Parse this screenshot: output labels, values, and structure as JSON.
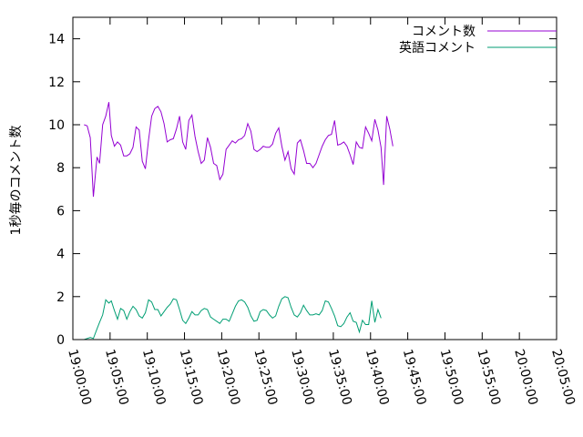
{
  "chart_data": {
    "type": "line",
    "title": "",
    "ylabel": "1秒毎のコメント数",
    "xlabel": "",
    "xlim": [
      "19:00:00",
      "20:05:00"
    ],
    "ylim": [
      0,
      15
    ],
    "xticks": [
      "19:00:00",
      "19:05:00",
      "19:10:00",
      "19:15:00",
      "19:20:00",
      "19:25:00",
      "19:30:00",
      "19:35:00",
      "19:40:00",
      "19:45:00",
      "19:50:00",
      "19:55:00",
      "20:00:00",
      "20:05:00"
    ],
    "yticks": [
      0,
      2,
      4,
      6,
      8,
      10,
      12,
      14
    ],
    "grid": false,
    "legend": "top-right",
    "series": [
      {
        "name": "コメント数",
        "color": "#9400d3",
        "points": [
          [
            "19:01:30",
            10.0
          ],
          [
            "19:01:55",
            9.95
          ],
          [
            "19:02:20",
            9.4
          ],
          [
            "19:02:45",
            6.65
          ],
          [
            "19:03:15",
            8.5
          ],
          [
            "19:03:35",
            8.2
          ],
          [
            "19:04:00",
            10.0
          ],
          [
            "19:04:25",
            10.4
          ],
          [
            "19:04:50",
            11.05
          ],
          [
            "19:05:10",
            9.5
          ],
          [
            "19:05:35",
            9.0
          ],
          [
            "19:06:00",
            9.2
          ],
          [
            "19:06:25",
            9.05
          ],
          [
            "19:06:50",
            8.55
          ],
          [
            "19:07:15",
            8.55
          ],
          [
            "19:07:40",
            8.65
          ],
          [
            "19:08:05",
            8.95
          ],
          [
            "19:08:30",
            9.9
          ],
          [
            "19:08:55",
            9.75
          ],
          [
            "19:09:20",
            8.3
          ],
          [
            "19:09:45",
            7.95
          ],
          [
            "19:10:10",
            9.3
          ],
          [
            "19:10:35",
            10.4
          ],
          [
            "19:11:00",
            10.75
          ],
          [
            "19:11:25",
            10.85
          ],
          [
            "19:11:50",
            10.6
          ],
          [
            "19:12:15",
            10.05
          ],
          [
            "19:12:40",
            9.2
          ],
          [
            "19:13:05",
            9.3
          ],
          [
            "19:13:30",
            9.35
          ],
          [
            "19:13:55",
            9.8
          ],
          [
            "19:14:20",
            10.4
          ],
          [
            "19:14:45",
            9.2
          ],
          [
            "19:15:10",
            8.85
          ],
          [
            "19:15:35",
            10.2
          ],
          [
            "19:16:00",
            10.45
          ],
          [
            "19:16:25",
            9.45
          ],
          [
            "19:16:50",
            8.75
          ],
          [
            "19:17:15",
            8.2
          ],
          [
            "19:17:40",
            8.35
          ],
          [
            "19:18:05",
            9.4
          ],
          [
            "19:18:30",
            8.95
          ],
          [
            "19:18:55",
            8.2
          ],
          [
            "19:19:20",
            8.1
          ],
          [
            "19:19:45",
            7.45
          ],
          [
            "19:20:10",
            7.7
          ],
          [
            "19:20:35",
            8.85
          ],
          [
            "19:21:00",
            9.05
          ],
          [
            "19:21:25",
            9.25
          ],
          [
            "19:21:50",
            9.15
          ],
          [
            "19:22:15",
            9.3
          ],
          [
            "19:22:40",
            9.35
          ],
          [
            "19:23:05",
            9.5
          ],
          [
            "19:23:30",
            10.05
          ],
          [
            "19:23:55",
            9.7
          ],
          [
            "19:24:20",
            8.85
          ],
          [
            "19:24:45",
            8.75
          ],
          [
            "19:25:10",
            8.85
          ],
          [
            "19:25:35",
            9.0
          ],
          [
            "19:26:00",
            8.95
          ],
          [
            "19:26:25",
            8.95
          ],
          [
            "19:26:50",
            9.1
          ],
          [
            "19:27:15",
            9.6
          ],
          [
            "19:27:40",
            9.85
          ],
          [
            "19:28:05",
            9.0
          ],
          [
            "19:28:30",
            8.35
          ],
          [
            "19:28:55",
            8.75
          ],
          [
            "19:29:20",
            7.95
          ],
          [
            "19:29:45",
            7.7
          ],
          [
            "19:30:10",
            9.15
          ],
          [
            "19:30:35",
            9.3
          ],
          [
            "19:31:00",
            8.8
          ],
          [
            "19:31:25",
            8.2
          ],
          [
            "19:31:50",
            8.2
          ],
          [
            "19:32:15",
            8.0
          ],
          [
            "19:32:40",
            8.2
          ],
          [
            "19:33:05",
            8.6
          ],
          [
            "19:33:30",
            9.0
          ],
          [
            "19:33:55",
            9.3
          ],
          [
            "19:34:20",
            9.5
          ],
          [
            "19:34:45",
            9.55
          ],
          [
            "19:35:10",
            10.2
          ],
          [
            "19:35:35",
            9.05
          ],
          [
            "19:36:00",
            9.1
          ],
          [
            "19:36:25",
            9.2
          ],
          [
            "19:36:50",
            9.0
          ],
          [
            "19:37:15",
            8.6
          ],
          [
            "19:37:40",
            8.15
          ],
          [
            "19:38:05",
            9.2
          ],
          [
            "19:38:30",
            8.95
          ],
          [
            "19:38:55",
            8.9
          ],
          [
            "19:39:20",
            9.9
          ],
          [
            "19:39:45",
            9.6
          ],
          [
            "19:40:10",
            9.25
          ],
          [
            "19:40:35",
            10.25
          ],
          [
            "19:41:00",
            9.75
          ],
          [
            "19:41:25",
            8.95
          ],
          [
            "19:41:45",
            7.2
          ],
          [
            "19:42:10",
            10.4
          ],
          [
            "19:42:35",
            9.8
          ],
          [
            "19:43:00",
            9.0
          ]
        ]
      },
      {
        "name": "英語コメント",
        "color": "#009e73",
        "points": [
          [
            "19:01:30",
            0.0
          ],
          [
            "19:01:55",
            0.05
          ],
          [
            "19:02:20",
            0.1
          ],
          [
            "19:02:45",
            0.05
          ],
          [
            "19:03:15",
            0.5
          ],
          [
            "19:03:35",
            0.8
          ],
          [
            "19:04:00",
            1.15
          ],
          [
            "19:04:25",
            1.85
          ],
          [
            "19:04:50",
            1.7
          ],
          [
            "19:05:10",
            1.8
          ],
          [
            "19:05:35",
            1.35
          ],
          [
            "19:06:00",
            0.95
          ],
          [
            "19:06:25",
            1.45
          ],
          [
            "19:06:50",
            1.35
          ],
          [
            "19:07:15",
            0.95
          ],
          [
            "19:07:40",
            1.3
          ],
          [
            "19:08:05",
            1.55
          ],
          [
            "19:08:30",
            1.4
          ],
          [
            "19:08:55",
            1.1
          ],
          [
            "19:09:20",
            1.0
          ],
          [
            "19:09:45",
            1.25
          ],
          [
            "19:10:10",
            1.85
          ],
          [
            "19:10:35",
            1.75
          ],
          [
            "19:11:00",
            1.4
          ],
          [
            "19:11:25",
            1.4
          ],
          [
            "19:11:50",
            1.1
          ],
          [
            "19:12:15",
            1.3
          ],
          [
            "19:12:40",
            1.5
          ],
          [
            "19:13:05",
            1.65
          ],
          [
            "19:13:30",
            1.9
          ],
          [
            "19:13:55",
            1.85
          ],
          [
            "19:14:20",
            1.4
          ],
          [
            "19:14:45",
            0.9
          ],
          [
            "19:15:10",
            0.75
          ],
          [
            "19:15:35",
            1.0
          ],
          [
            "19:16:00",
            1.3
          ],
          [
            "19:16:25",
            1.15
          ],
          [
            "19:16:50",
            1.15
          ],
          [
            "19:17:15",
            1.35
          ],
          [
            "19:17:40",
            1.45
          ],
          [
            "19:18:05",
            1.4
          ],
          [
            "19:18:30",
            1.05
          ],
          [
            "19:18:55",
            0.95
          ],
          [
            "19:19:20",
            0.85
          ],
          [
            "19:19:45",
            0.75
          ],
          [
            "19:20:10",
            0.95
          ],
          [
            "19:20:35",
            0.95
          ],
          [
            "19:21:00",
            0.85
          ],
          [
            "19:21:25",
            1.2
          ],
          [
            "19:21:50",
            1.55
          ],
          [
            "19:22:15",
            1.8
          ],
          [
            "19:22:40",
            1.85
          ],
          [
            "19:23:05",
            1.75
          ],
          [
            "19:23:30",
            1.5
          ],
          [
            "19:23:55",
            1.1
          ],
          [
            "19:24:20",
            0.85
          ],
          [
            "19:24:45",
            0.9
          ],
          [
            "19:25:10",
            1.3
          ],
          [
            "19:25:35",
            1.4
          ],
          [
            "19:26:00",
            1.35
          ],
          [
            "19:26:25",
            1.15
          ],
          [
            "19:26:50",
            1.0
          ],
          [
            "19:27:15",
            1.1
          ],
          [
            "19:27:40",
            1.55
          ],
          [
            "19:28:05",
            1.9
          ],
          [
            "19:28:30",
            2.0
          ],
          [
            "19:28:55",
            1.95
          ],
          [
            "19:29:20",
            1.5
          ],
          [
            "19:29:45",
            1.15
          ],
          [
            "19:30:10",
            1.05
          ],
          [
            "19:30:35",
            1.25
          ],
          [
            "19:31:00",
            1.6
          ],
          [
            "19:31:25",
            1.35
          ],
          [
            "19:31:50",
            1.15
          ],
          [
            "19:32:15",
            1.15
          ],
          [
            "19:32:40",
            1.2
          ],
          [
            "19:33:05",
            1.15
          ],
          [
            "19:33:30",
            1.35
          ],
          [
            "19:33:55",
            1.8
          ],
          [
            "19:34:20",
            1.75
          ],
          [
            "19:34:45",
            1.45
          ],
          [
            "19:35:10",
            1.1
          ],
          [
            "19:35:35",
            0.65
          ],
          [
            "19:36:00",
            0.6
          ],
          [
            "19:36:25",
            0.75
          ],
          [
            "19:36:50",
            1.05
          ],
          [
            "19:37:15",
            1.25
          ],
          [
            "19:37:40",
            0.85
          ],
          [
            "19:38:05",
            0.8
          ],
          [
            "19:38:30",
            0.35
          ],
          [
            "19:38:55",
            0.9
          ],
          [
            "19:39:20",
            0.7
          ],
          [
            "19:39:45",
            0.7
          ],
          [
            "19:40:10",
            1.8
          ],
          [
            "19:40:35",
            0.8
          ],
          [
            "19:41:00",
            1.4
          ],
          [
            "19:41:25",
            1.0
          ]
        ]
      }
    ]
  }
}
